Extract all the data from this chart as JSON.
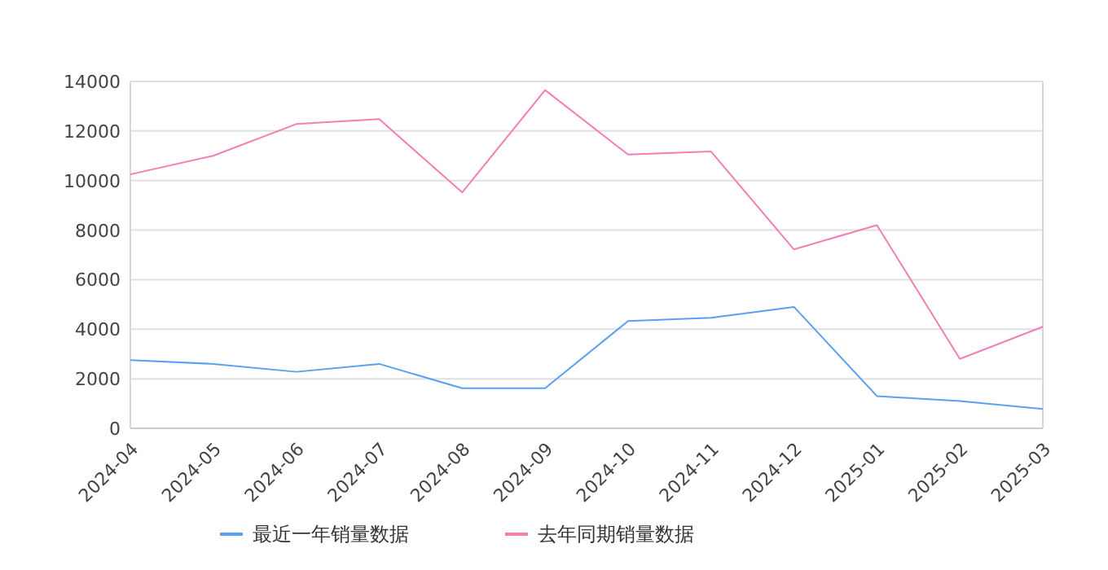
{
  "chart_data": {
    "type": "line",
    "categories": [
      "2024-04",
      "2024-05",
      "2024-06",
      "2024-07",
      "2024-08",
      "2024-09",
      "2024-10",
      "2024-11",
      "2024-12",
      "2025-01",
      "2025-02",
      "2025-03"
    ],
    "series": [
      {
        "name": "最近一年销量数据",
        "color": "#5aa0ee",
        "values": [
          2750,
          2600,
          2280,
          2600,
          1620,
          1620,
          4330,
          4460,
          4900,
          1300,
          1100,
          780
        ]
      },
      {
        "name": "去年同期销量数据",
        "color": "#f27eb5",
        "values": [
          10250,
          11000,
          12280,
          12480,
          9520,
          13650,
          11050,
          11170,
          7220,
          8200,
          2800,
          4100
        ]
      }
    ],
    "ylim": [
      0,
      14000
    ],
    "yticks": [
      0,
      2000,
      4000,
      6000,
      8000,
      10000,
      12000,
      14000
    ],
    "grid": "y",
    "legend": "bottom",
    "marker": "none",
    "line_style": "solid"
  }
}
